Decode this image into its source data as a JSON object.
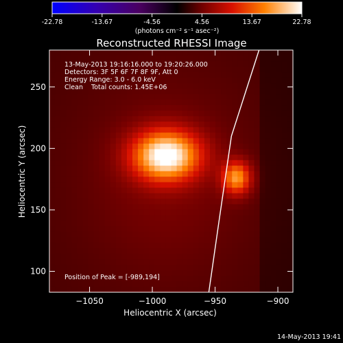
{
  "colorbar": {
    "tick_labels": [
      "-22.78",
      "-13.67",
      "-4.56",
      "4.56",
      "13.67",
      "22.78"
    ],
    "units_html": "(photons cm⁻² s⁻¹ asec⁻²)"
  },
  "title": "Reconstructed RHESSI Image",
  "info": {
    "line1": "13-May-2013 19:16:16.000 to 19:20:26.000",
    "line2": "Detectors: 3F 5F 6F 7F 8F 9F, Att 0",
    "line3": "Energy Range: 3.0 - 6.0 keV",
    "line4": "Clean    Total counts: 1.45E+06",
    "peak": "Position of Peak = [-989,194]"
  },
  "footer": {
    "timestamp": "14-May-2013 19:41"
  },
  "chart_data": {
    "type": "heatmap",
    "title": "Reconstructed RHESSI Image",
    "xlabel": "Heliocentric X (arcsec)",
    "ylabel": "Heliocentric Y (arcsec)",
    "xlim": [
      -1082,
      -888
    ],
    "ylim": [
      83,
      280
    ],
    "x_ticks": [
      -1050,
      -1000,
      -950,
      -900
    ],
    "y_ticks": [
      100,
      150,
      200,
      250
    ],
    "colorbar_range": [
      -22.78,
      22.78
    ],
    "sources": [
      {
        "x": -989,
        "y": 194,
        "peak": 22.78
      },
      {
        "x": -933,
        "y": 176,
        "peak": 16.5
      }
    ],
    "limb_curve": [
      [
        -915,
        280
      ],
      [
        -937,
        210
      ],
      [
        -947,
        140
      ],
      [
        -955,
        83
      ]
    ]
  }
}
